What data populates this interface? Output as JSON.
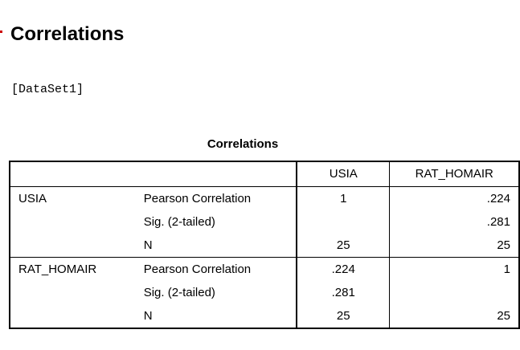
{
  "heading": "Correlations",
  "dataset_label": "[DataSet1]",
  "table": {
    "title": "Correlations",
    "columns": [
      "USIA",
      "RAT_HOMAIR"
    ],
    "rows": [
      {
        "group": "USIA",
        "stat": "Pearson Correlation",
        "usia": "1",
        "rat_homair": ".224"
      },
      {
        "group": "",
        "stat": "Sig. (2-tailed)",
        "usia": "",
        "rat_homair": ".281"
      },
      {
        "group": "",
        "stat": "N",
        "usia": "25",
        "rat_homair": "25"
      },
      {
        "group": "RAT_HOMAIR",
        "stat": "Pearson Correlation",
        "usia": ".224",
        "rat_homair": "1"
      },
      {
        "group": "",
        "stat": "Sig. (2-tailed)",
        "usia": ".281",
        "rat_homair": ""
      },
      {
        "group": "",
        "stat": "N",
        "usia": "25",
        "rat_homair": "25"
      }
    ]
  },
  "colors": {
    "marker": "#cc0000",
    "border": "#000000",
    "background": "#ffffff"
  }
}
